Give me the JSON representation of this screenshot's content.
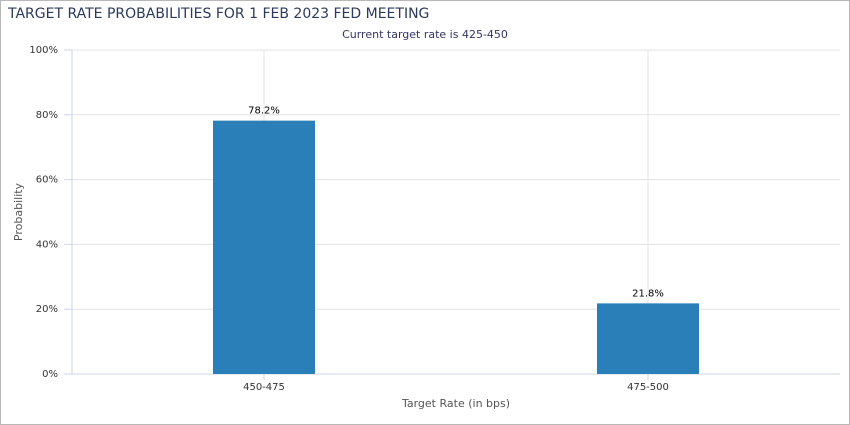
{
  "chart_data": {
    "type": "bar",
    "title": "TARGET RATE PROBABILITIES FOR 1 FEB 2023 FED MEETING",
    "subtitle": "Current target rate is 425-450",
    "x_label": "Target Rate (in bps)",
    "y_label": "Probability",
    "categories": [
      "450-475",
      "475-500"
    ],
    "values": [
      78.2,
      21.8
    ],
    "value_labels": [
      "78.2%",
      "21.8%"
    ],
    "color": "#2b7fb8",
    "ylim": [
      0,
      100
    ],
    "yticks": [
      {
        "value": 0,
        "label": "0%"
      },
      {
        "value": 20,
        "label": "20%"
      },
      {
        "value": 40,
        "label": "40%"
      },
      {
        "value": 60,
        "label": "60%"
      },
      {
        "value": 80,
        "label": "80%"
      },
      {
        "value": 100,
        "label": "100%"
      }
    ],
    "grid": true
  }
}
